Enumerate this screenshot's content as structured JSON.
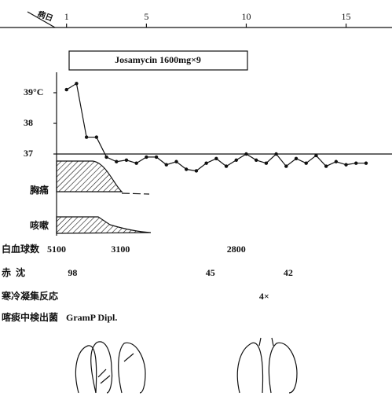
{
  "chart_data": {
    "type": "line",
    "x_label": "病日",
    "xlim": [
      0.5,
      17.3
    ],
    "xticks": [
      1,
      5,
      10,
      15
    ],
    "ylim": [
      36.3,
      39.7
    ],
    "yticks": [
      {
        "value": 39,
        "label": "39°C"
      },
      38,
      37
    ],
    "hline": 37,
    "color": "#111111",
    "drug": "Josamycin 1600mg×9",
    "x": [
      1,
      1.5,
      2,
      2.5,
      3,
      3.5,
      4,
      4.5,
      5,
      5.5,
      6,
      6.5,
      7,
      7.5,
      8,
      8.5,
      9,
      9.5,
      10,
      10.5,
      11,
      11.5,
      12,
      12.5,
      13,
      13.5,
      14,
      14.5,
      15,
      15.5,
      16
    ],
    "values": [
      39.1,
      39.3,
      37.55,
      37.55,
      36.9,
      36.75,
      36.8,
      36.7,
      36.9,
      36.9,
      36.65,
      36.75,
      36.5,
      36.45,
      36.7,
      36.85,
      36.6,
      36.8,
      37.0,
      36.8,
      36.7,
      37.0,
      36.6,
      36.85,
      36.7,
      36.95,
      36.6,
      36.75,
      36.65,
      36.7,
      36.7
    ],
    "symptoms": [
      "胸痛",
      "咳嗽"
    ],
    "labs": [
      {
        "name": "白血球数",
        "x": [
          0.5,
          3.7,
          9.5
        ],
        "values": [
          5100,
          3100,
          2800
        ]
      },
      {
        "name": "赤  沈",
        "x": [
          1.3,
          8.2,
          12.1
        ],
        "values": [
          98,
          45,
          42
        ]
      },
      {
        "name": "寒冷凝集反応",
        "x": [
          10.9
        ],
        "values": [
          4
        ],
        "value_labels": [
          "4×"
        ]
      }
    ],
    "sputum": {
      "name": "喀痰中検出菌",
      "value": "GramP Dipl."
    }
  }
}
